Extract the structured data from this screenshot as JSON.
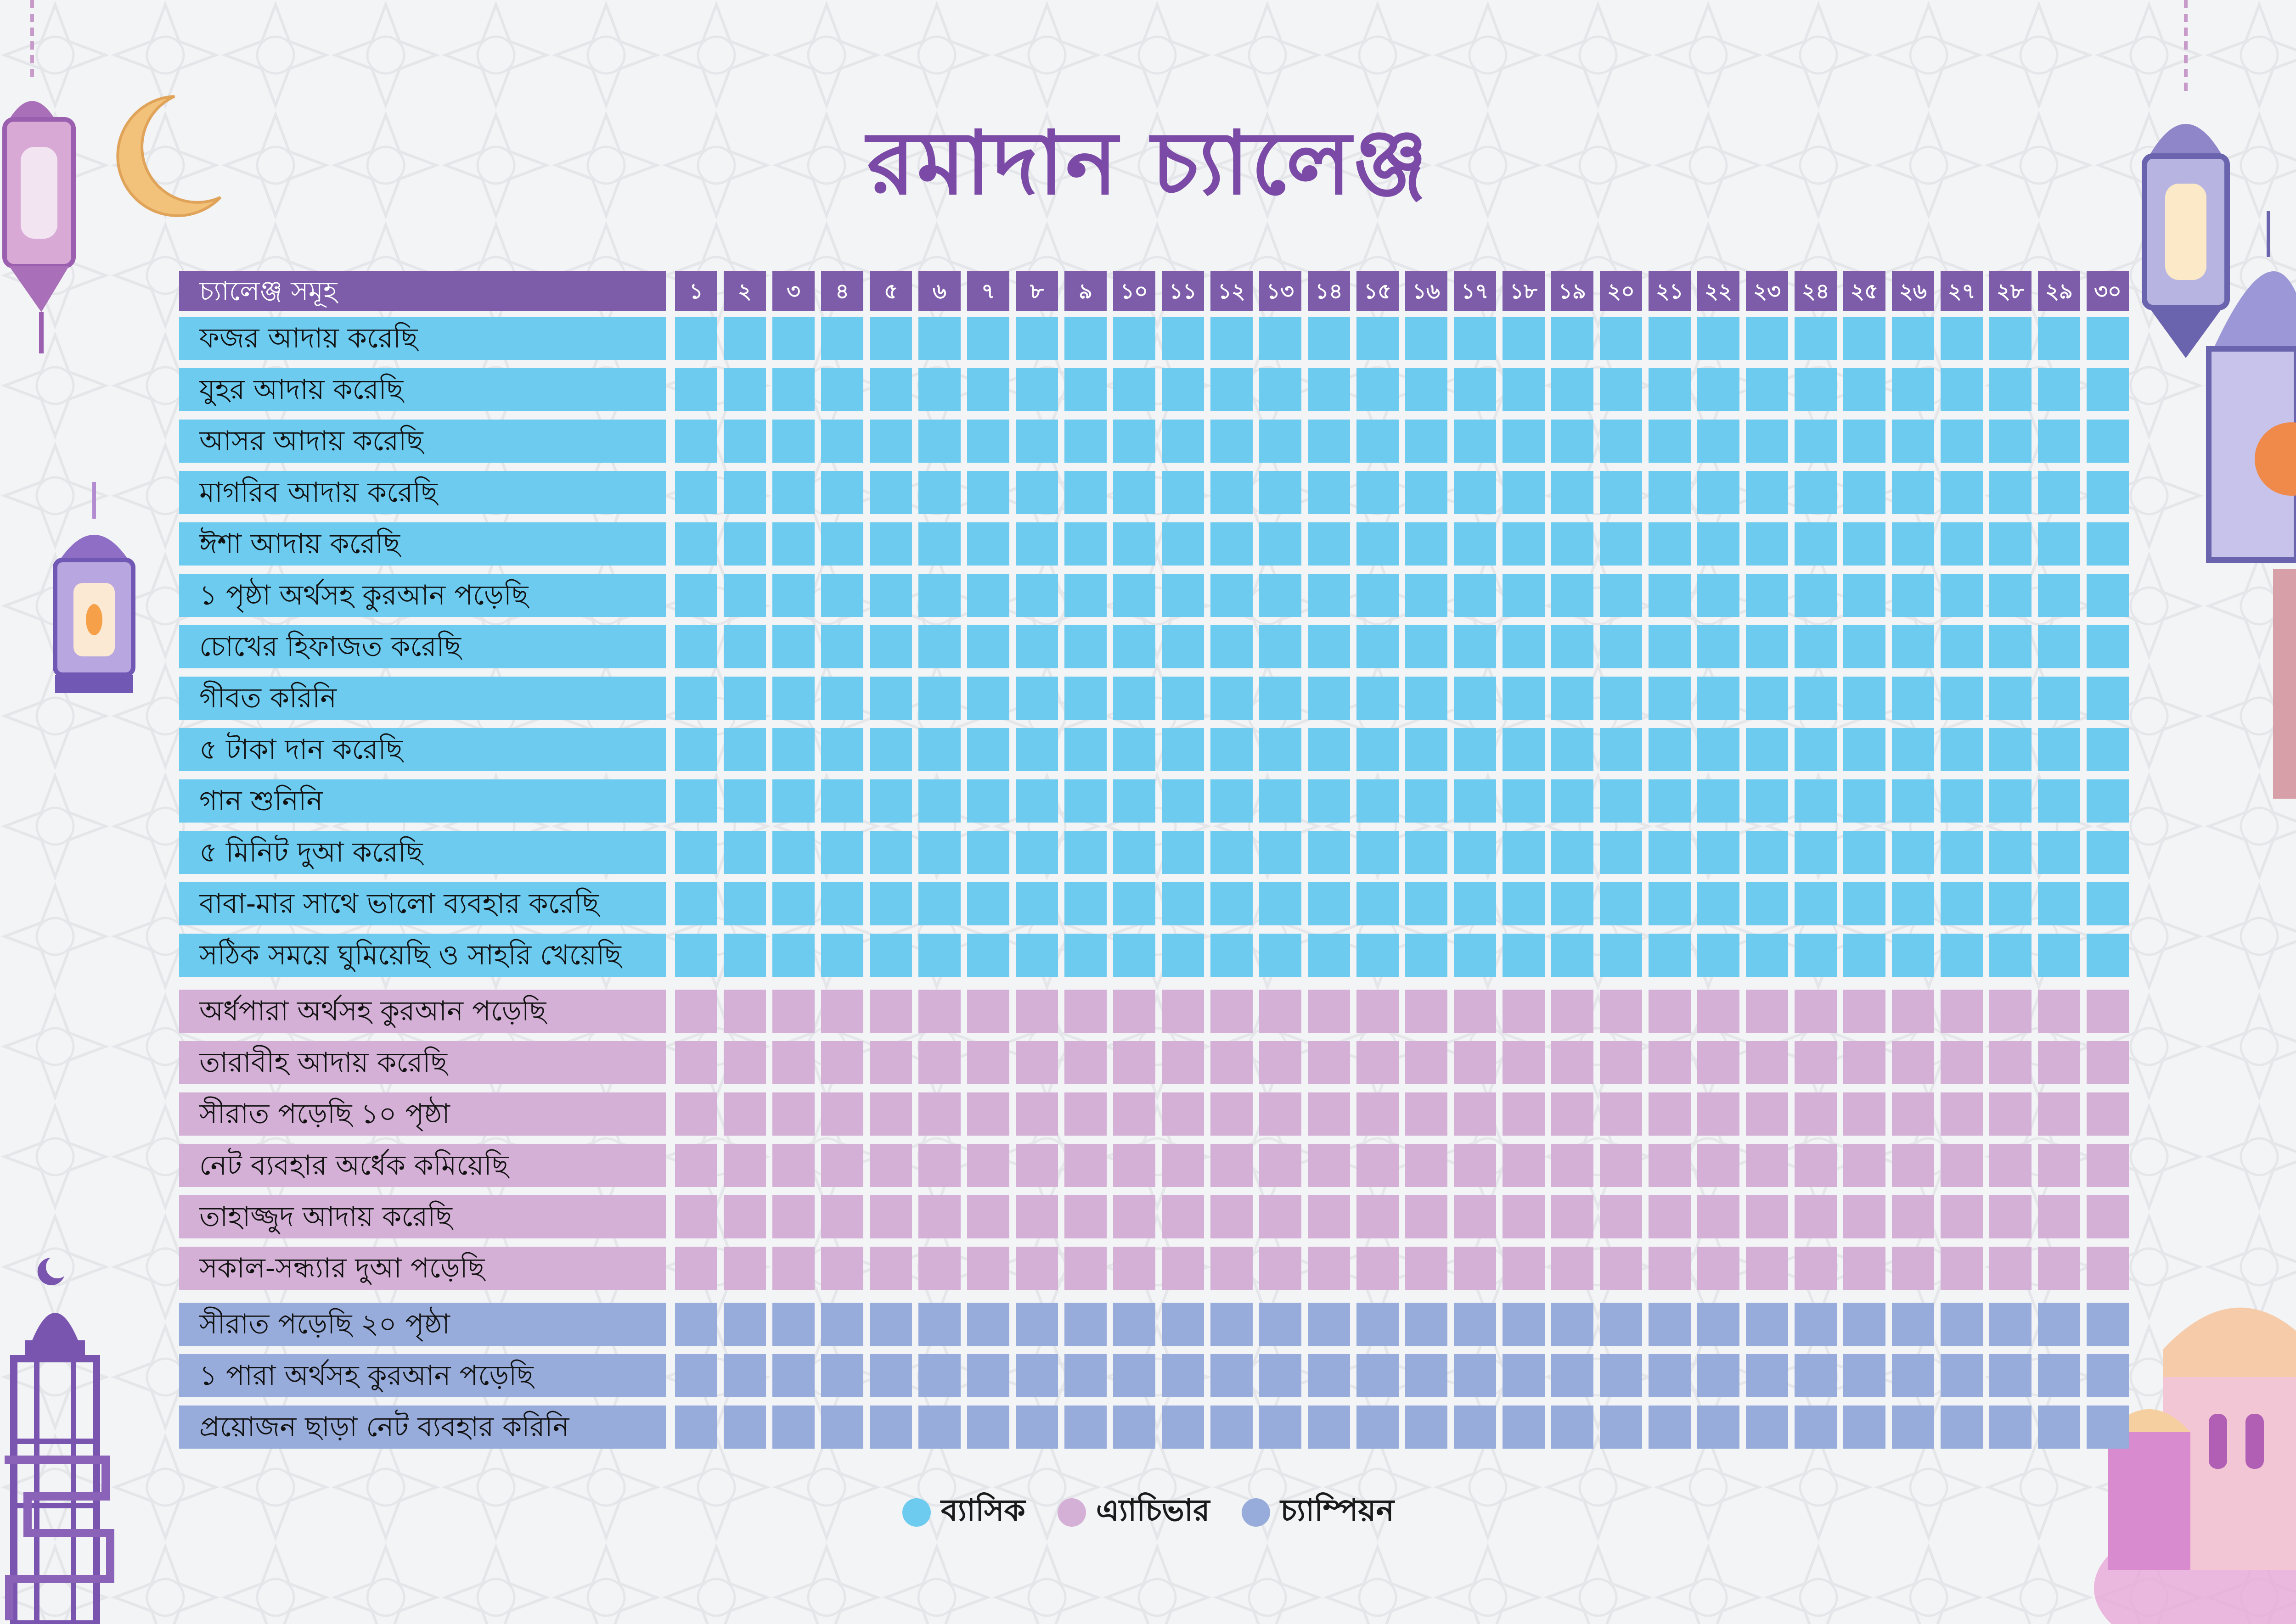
{
  "title": "রমাদান চ্যালেঞ্জ",
  "header": {
    "label": "চ্যালেঞ্জ সমূহ",
    "days": [
      "১",
      "২",
      "৩",
      "৪",
      "৫",
      "৬",
      "৭",
      "৮",
      "৯",
      "১০",
      "১১",
      "১২",
      "১৩",
      "১৪",
      "১৫",
      "১৬",
      "১৭",
      "১৮",
      "১৯",
      "২০",
      "২১",
      "২২",
      "২৩",
      "২৪",
      "২৫",
      "২৬",
      "২৭",
      "২৮",
      "২৯",
      "৩০"
    ]
  },
  "colors": {
    "header": "#7d5ca9",
    "basic": "#6ccbef",
    "achiever": "#d4afd6",
    "champion": "#98acdb",
    "title": "#7a4aa6"
  },
  "rows": [
    {
      "label": "ফজর আদায় করেছি",
      "level": "basic"
    },
    {
      "label": "যুহর আদায় করেছি",
      "level": "basic"
    },
    {
      "label": "আসর আদায় করেছি",
      "level": "basic"
    },
    {
      "label": "মাগরিব আদায় করেছি",
      "level": "basic"
    },
    {
      "label": "ঈশা আদায় করেছি",
      "level": "basic"
    },
    {
      "label": "১ পৃষ্ঠা অর্থসহ কুরআন পড়েছি",
      "level": "basic"
    },
    {
      "label": "চোখের হিফাজত করেছি",
      "level": "basic"
    },
    {
      "label": "গীবত করিনি",
      "level": "basic"
    },
    {
      "label": "৫ টাকা দান করেছি",
      "level": "basic"
    },
    {
      "label": "গান শুনিনি",
      "level": "basic"
    },
    {
      "label": "৫ মিনিট দুআ করেছি",
      "level": "basic"
    },
    {
      "label": "বাবা-মার সাথে ভালো ব্যবহার করেছি",
      "level": "basic"
    },
    {
      "label": "সঠিক সময়ে ঘুমিয়েছি ও সাহরি খেয়েছি",
      "level": "basic"
    },
    {
      "label": "অর্ধপারা অর্থসহ কুরআন পড়েছি",
      "level": "achiever"
    },
    {
      "label": "তারাবীহ আদায় করেছি",
      "level": "achiever"
    },
    {
      "label": "সীরাত পড়েছি ১০ পৃষ্ঠা",
      "level": "achiever"
    },
    {
      "label": "নেট ব্যবহার অর্ধেক কমিয়েছি",
      "level": "achiever"
    },
    {
      "label": "তাহাজ্জুদ আদায় করেছি",
      "level": "achiever"
    },
    {
      "label": "সকাল-সন্ধ্যার দুআ পড়েছি",
      "level": "achiever"
    },
    {
      "label": "সীরাত পড়েছি ২০ পৃষ্ঠা",
      "level": "champion"
    },
    {
      "label": "১ পারা অর্থসহ কুরআন পড়েছি",
      "level": "champion"
    },
    {
      "label": "প্রয়োজন ছাড়া নেট ব্যবহার করিনি",
      "level": "champion"
    }
  ],
  "legend": [
    {
      "label": "ব্যাসিক",
      "level": "basic"
    },
    {
      "label": "এ্যাচিভার",
      "level": "achiever"
    },
    {
      "label": "চ্যাম্পিয়ন",
      "level": "champion"
    }
  ],
  "decorations": [
    "lantern-icon",
    "crescent-moon-icon",
    "mosque-dome-icon",
    "minaret-icon",
    "calligraphy-icon"
  ]
}
